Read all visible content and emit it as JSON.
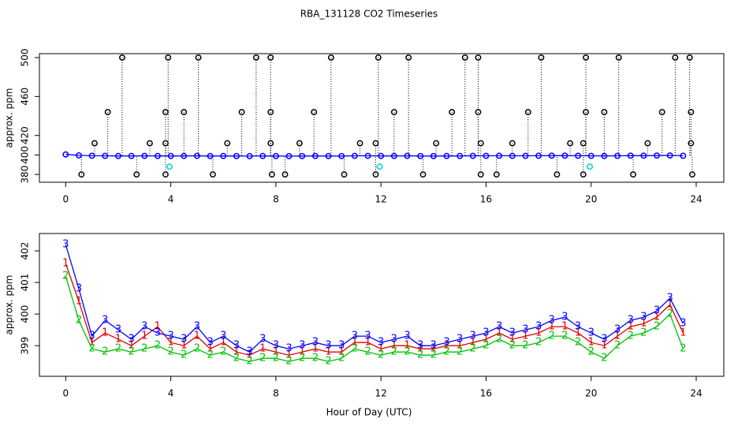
{
  "chart_data": [
    {
      "type": "line",
      "title": "RBA_131128  CO2 Timeseries",
      "ylabel": "approx. ppm",
      "xlim": [
        -1,
        25.05
      ],
      "xticks": [
        0,
        4,
        8,
        12,
        16,
        20,
        24
      ],
      "ylim": [
        372,
        504
      ],
      "yticks": [
        380,
        400,
        420,
        460,
        500
      ],
      "series": [
        {
          "color": "#000000",
          "marker": "circle",
          "drop": true,
          "x": [
            0.6,
            1.1,
            1.6,
            2.15,
            2.7,
            3.2,
            3.8,
            3.8,
            3.8,
            3.9,
            4.5,
            5.05,
            5.6,
            6.15,
            6.7,
            7.25,
            7.8,
            7.8,
            7.8,
            7.85,
            8.35,
            8.9,
            9.45,
            10.1,
            10.6,
            11.2,
            11.8,
            11.8,
            11.9,
            12.5,
            13.05,
            13.6,
            14.1,
            14.7,
            15.2,
            15.7,
            15.7,
            15.8,
            15.8,
            16.4,
            17,
            17.6,
            18.1,
            18.7,
            19.2,
            19.7,
            19.7,
            19.8,
            19.8,
            20.5,
            21.05,
            21.6,
            22.15,
            22.7,
            23.2,
            23.75,
            23.8,
            23.8,
            23.85
          ],
          "values": [
            380,
            412,
            444,
            500,
            380,
            412,
            412,
            444,
            380,
            500,
            444,
            500,
            380,
            412,
            444,
            500,
            500,
            444,
            412,
            380,
            380,
            412,
            444,
            500,
            380,
            412,
            412,
            380,
            500,
            444,
            500,
            380,
            412,
            444,
            500,
            500,
            444,
            412,
            380,
            380,
            412,
            444,
            500,
            380,
            412,
            412,
            380,
            500,
            444,
            444,
            500,
            380,
            412,
            444,
            500,
            500,
            444,
            412,
            380
          ]
        },
        {
          "color": "#00d0d0",
          "marker": "circle",
          "x": [
            3.95,
            11.95,
            19.95
          ],
          "values": [
            388,
            388,
            388
          ]
        },
        {
          "color": "#0000ff",
          "marker": "circle",
          "connect": true,
          "x": [
            0,
            0.5,
            1,
            1.5,
            2,
            2.5,
            3,
            3.5,
            4,
            4.5,
            5,
            5.5,
            6,
            6.5,
            7,
            7.5,
            8,
            8.5,
            9,
            9.5,
            10,
            10.5,
            11,
            11.5,
            12,
            12.5,
            13,
            13.5,
            14,
            14.5,
            15,
            15.5,
            16,
            16.5,
            17,
            17.5,
            18,
            18.5,
            19,
            19.5,
            20,
            20.5,
            21,
            21.5,
            22,
            22.5,
            23,
            23.5
          ],
          "values": [
            400.5,
            399.6,
            399.2,
            399.1,
            399.0,
            399.0,
            399.1,
            399.0,
            399.0,
            399.0,
            399.1,
            398.9,
            399.0,
            398.9,
            398.8,
            399.0,
            398.9,
            398.8,
            398.9,
            399.0,
            398.9,
            398.9,
            399.1,
            399.1,
            399.0,
            399.0,
            399.1,
            398.9,
            398.9,
            399.0,
            399.0,
            399.1,
            399.1,
            399.2,
            399.1,
            399.1,
            399.2,
            399.3,
            399.3,
            399.2,
            399.1,
            399.0,
            399.1,
            399.3,
            399.3,
            399.4,
            399.5,
            399.2
          ]
        }
      ]
    },
    {
      "type": "line",
      "ylabel": "approx. ppm",
      "xlabel": "Hour of Day (UTC)",
      "xlim": [
        -1,
        25.05
      ],
      "xticks": [
        0,
        4,
        8,
        12,
        16,
        20,
        24
      ],
      "ylim": [
        398.03,
        402.55
      ],
      "yticks": [
        399,
        400,
        401,
        402
      ],
      "x": [
        0,
        0.5,
        1,
        1.5,
        2,
        2.5,
        3,
        3.5,
        4,
        4.5,
        5,
        5.5,
        6,
        6.5,
        7,
        7.5,
        8,
        8.5,
        9,
        9.5,
        10,
        10.5,
        11,
        11.5,
        12,
        12.5,
        13,
        13.5,
        14,
        14.5,
        15,
        15.5,
        16,
        16.5,
        17,
        17.5,
        18,
        18.5,
        19,
        19.5,
        20,
        20.5,
        21,
        21.5,
        22,
        22.5,
        23,
        23.5
      ],
      "series": [
        {
          "name": "1",
          "color": "#e00000",
          "marker": "name",
          "connect": true,
          "values": [
            401.6,
            400.4,
            399.1,
            399.4,
            399.2,
            399.0,
            399.3,
            399.6,
            399.1,
            399.0,
            399.3,
            398.9,
            399.1,
            398.8,
            398.7,
            398.9,
            398.8,
            398.7,
            398.8,
            398.9,
            398.8,
            398.8,
            399.1,
            399.1,
            398.9,
            399.0,
            399.0,
            398.9,
            398.9,
            399.0,
            399.0,
            399.1,
            399.2,
            399.4,
            399.2,
            399.3,
            399.4,
            399.6,
            399.6,
            399.4,
            399.1,
            399.0,
            399.3,
            399.6,
            399.7,
            399.9,
            400.3,
            399.4
          ]
        },
        {
          "name": "2",
          "color": "#00c000",
          "marker": "name",
          "connect": true,
          "values": [
            401.2,
            399.8,
            398.9,
            398.8,
            398.9,
            398.8,
            398.9,
            399.0,
            398.8,
            398.7,
            398.9,
            398.7,
            398.8,
            398.6,
            398.5,
            398.6,
            398.6,
            398.5,
            398.6,
            398.6,
            398.5,
            398.6,
            398.9,
            398.8,
            398.7,
            398.8,
            398.8,
            398.7,
            398.7,
            398.8,
            398.8,
            398.9,
            399.0,
            399.2,
            399.0,
            399.0,
            399.1,
            399.3,
            399.3,
            399.1,
            398.8,
            398.6,
            399.0,
            399.3,
            399.4,
            399.6,
            400.0,
            398.9
          ]
        },
        {
          "name": "3",
          "color": "#0000ff",
          "marker": "name",
          "connect": true,
          "values": [
            402.2,
            400.8,
            399.3,
            399.8,
            399.5,
            399.2,
            399.6,
            399.4,
            399.3,
            399.2,
            399.6,
            399.1,
            399.3,
            399.0,
            398.8,
            399.2,
            399.0,
            398.9,
            399.0,
            399.1,
            399.0,
            399.0,
            399.3,
            399.3,
            399.1,
            399.2,
            399.3,
            399.0,
            399.0,
            399.1,
            399.2,
            399.3,
            399.4,
            399.6,
            399.4,
            399.5,
            399.6,
            399.8,
            399.9,
            399.6,
            399.4,
            399.2,
            399.5,
            399.8,
            399.9,
            400.1,
            400.5,
            399.7
          ]
        }
      ]
    }
  ]
}
